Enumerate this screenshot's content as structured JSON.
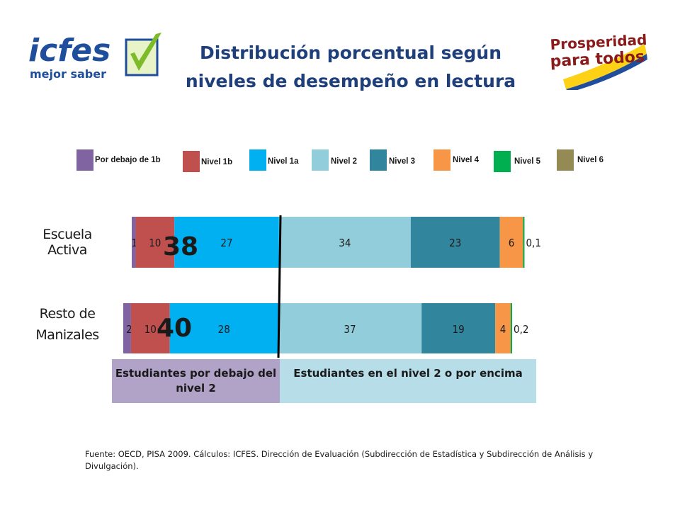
{
  "title_lines": [
    "Distribución porcentual según",
    "niveles de desempeño en lectura"
  ],
  "logos": {
    "left": {
      "text_main": "icfes",
      "text_sub": "mejor saber"
    },
    "right": {
      "line1": "Prosperidad",
      "line2": "para todos"
    }
  },
  "colors": {
    "below_box": "#b1a2c8",
    "above_box": "#b7dee8",
    "title": "#1f3f7a"
  },
  "chart_data": {
    "type": "bar",
    "orientation": "horizontal",
    "stacked": true,
    "categories": [
      "Escuela Activa",
      "Resto de Manizales"
    ],
    "series": [
      {
        "name": "Por debajo de 1b",
        "color": "#8064a2",
        "values": [
          1,
          2
        ],
        "labels": [
          "1",
          "2"
        ]
      },
      {
        "name": "Nivel 1b",
        "color": "#c0504d",
        "values": [
          10,
          10
        ],
        "labels": [
          "10",
          "10"
        ]
      },
      {
        "name": "Nivel 1a",
        "color": "#00b0f0",
        "values": [
          27,
          28
        ],
        "labels": [
          "27",
          "28"
        ]
      },
      {
        "name": "Nivel 2",
        "color": "#92cddc",
        "values": [
          34,
          37
        ],
        "labels": [
          "34",
          "37"
        ]
      },
      {
        "name": "Nivel 3",
        "color": "#31859c",
        "values": [
          23,
          19
        ],
        "labels": [
          "23",
          "19"
        ]
      },
      {
        "name": "Nivel 4",
        "color": "#f79646",
        "values": [
          6,
          4
        ],
        "labels": [
          "6",
          "4"
        ]
      },
      {
        "name": "Nivel 5",
        "color": "#00b050",
        "values": [
          0.1,
          0.2
        ],
        "labels": [
          "0,1",
          "0,2"
        ]
      },
      {
        "name": "Nivel 6",
        "color": "#948a54",
        "values": [
          0,
          0
        ],
        "labels": [
          "",
          ""
        ]
      }
    ],
    "annotations": {
      "below_level2_totals": [
        "38",
        "40"
      ],
      "below_box_label": "Estudiantes por debajo del nivel 2",
      "above_box_label": "Estudiantes en el nivel 2 o por encima"
    },
    "legend_position": "top",
    "grid": false
  },
  "footer": "Fuente: OECD, PISA 2009. Cálculos: ICFES. Dirección de Evaluación (Subdirección de Estadística y Subdirección de Análisis y Divulgación)."
}
